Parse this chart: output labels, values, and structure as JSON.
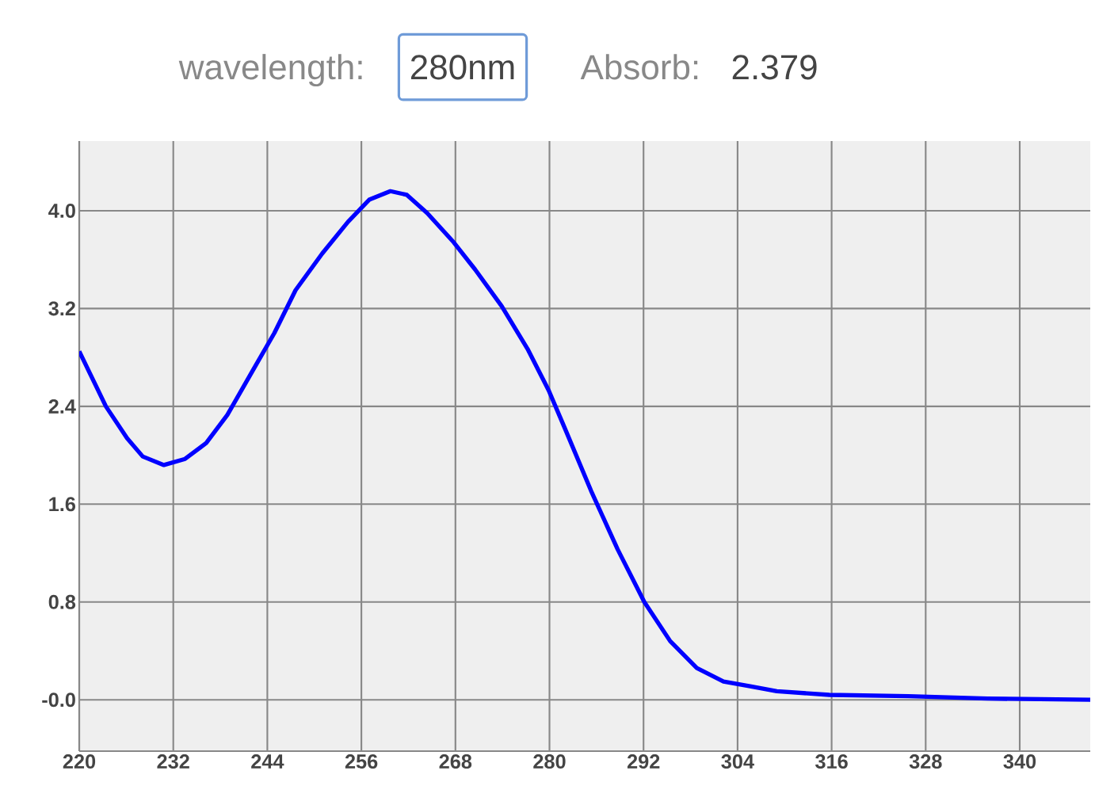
{
  "chart_data": {
    "type": "line",
    "annotations": [
      "wavelength:",
      "280nm",
      "Absorb:",
      "2.379"
    ],
    "x": [
      220,
      223.4,
      226.1,
      228.1,
      230.8,
      233.5,
      236.2,
      238.9,
      242.2,
      244.9,
      247.6,
      251.0,
      254.3,
      257.0,
      259.7,
      261.8,
      264.4,
      267.8,
      270.5,
      273.9,
      277.2,
      279.9,
      281.9,
      285.3,
      288.7,
      292.1,
      295.4,
      298.8,
      302.2,
      305.6,
      309.0,
      315.7,
      325.8,
      335.9,
      349
    ],
    "series": [
      {
        "color": "#0000ff",
        "values": [
          2.85,
          2.4,
          2.14,
          1.99,
          1.92,
          1.97,
          2.1,
          2.33,
          2.7,
          3.0,
          3.35,
          3.65,
          3.91,
          4.09,
          4.16,
          4.13,
          3.98,
          3.74,
          3.52,
          3.22,
          2.87,
          2.53,
          2.23,
          1.71,
          1.23,
          0.8,
          0.48,
          0.26,
          0.15,
          0.11,
          0.07,
          0.04,
          0.03,
          0.01,
          0.0
        ]
      }
    ],
    "xlim": [
      220,
      349
    ],
    "ylim": [
      -0.42,
      4.57
    ],
    "xticks": [
      220,
      232,
      244,
      256,
      268,
      280,
      292,
      304,
      316,
      328,
      340
    ],
    "yticks": [
      {
        "value": 0,
        "label": "-0.0"
      },
      0.8,
      1.6,
      2.4,
      3.2,
      {
        "value": 4,
        "label": "4.0"
      }
    ],
    "grid": true,
    "marker": "none",
    "line_style": "solid"
  }
}
